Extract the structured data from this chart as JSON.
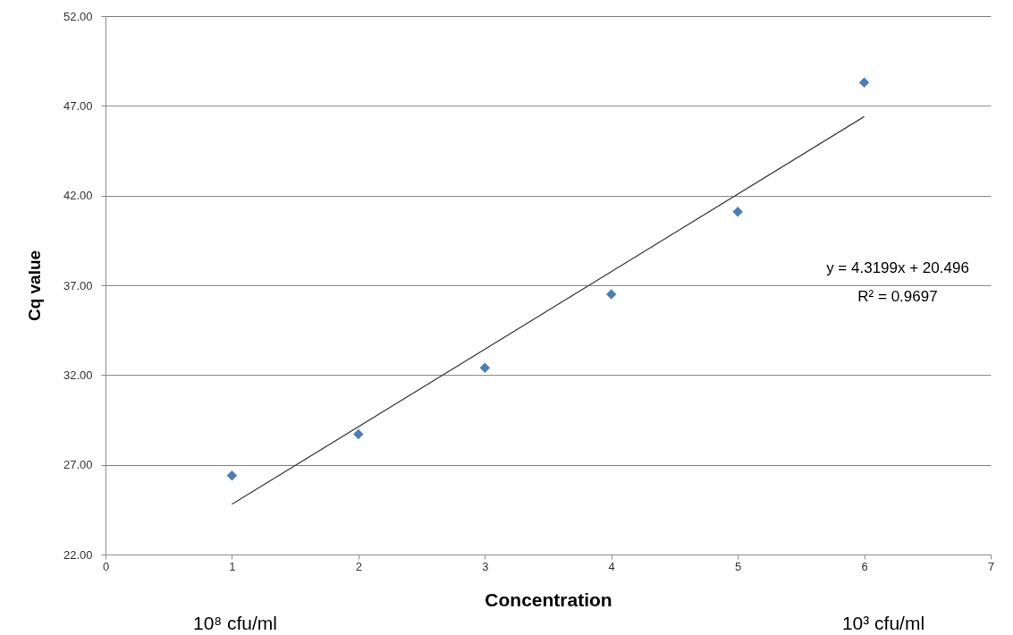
{
  "chart_data": {
    "type": "scatter",
    "xlabel": "Concentration",
    "ylabel": "Cq value",
    "xlim": [
      0,
      7
    ],
    "xticks": [
      0,
      1,
      2,
      3,
      4,
      5,
      6,
      7
    ],
    "ylim": [
      22,
      52
    ],
    "yticks": [
      {
        "value": 22,
        "label": "22.00"
      },
      {
        "value": 27,
        "label": "27.00"
      },
      {
        "value": 32,
        "label": "32.00"
      },
      {
        "value": 37,
        "label": "37.00"
      },
      {
        "value": 42,
        "label": "42.00"
      },
      {
        "value": 47,
        "label": "47.00"
      },
      {
        "value": 52,
        "label": "52.00"
      }
    ],
    "grid": "y",
    "marker": "diamond",
    "series": [
      {
        "color": "#4a7ebb",
        "x": [
          1,
          2,
          3,
          4,
          5,
          6
        ],
        "values": [
          26.4,
          28.7,
          32.4,
          36.5,
          41.1,
          48.3
        ]
      },
      {
        "type": "line",
        "marker": "none",
        "color": "#404040",
        "x": [
          1,
          6
        ],
        "values": [
          24.8,
          46.4
        ]
      }
    ],
    "annotations": [
      "y = 4.3199x + 20.496",
      "R² = 0.9697",
      "10⁸ cfu/ml",
      "10³ cfu/ml"
    ]
  }
}
